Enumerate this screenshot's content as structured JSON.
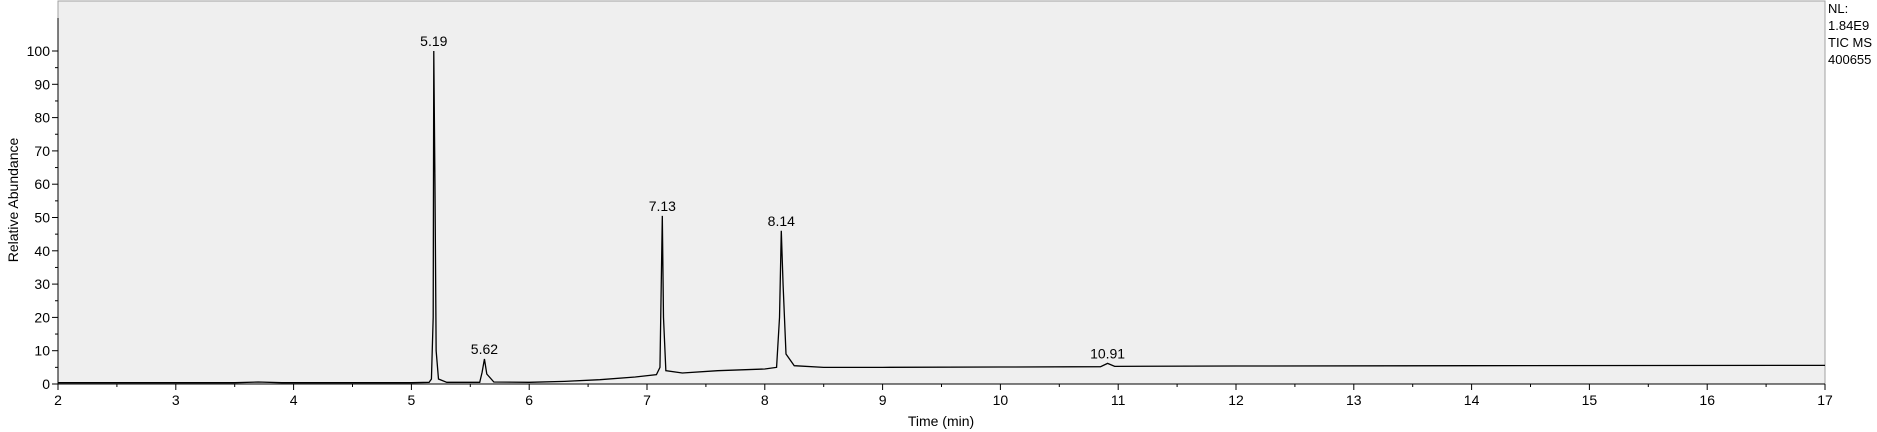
{
  "info": {
    "nl_label": "NL:",
    "nl_value": "1.84E9",
    "trace_type": "TIC  MS",
    "sample_id": "400655"
  },
  "chart_data": {
    "type": "line",
    "title": "",
    "xlabel": "Time (min)",
    "ylabel": "Relative Abundance",
    "xlim": [
      2,
      17
    ],
    "ylim": [
      0,
      100
    ],
    "x_ticks": [
      2,
      3,
      4,
      5,
      6,
      7,
      8,
      9,
      10,
      11,
      12,
      13,
      14,
      15,
      16,
      17
    ],
    "y_ticks": [
      0,
      10,
      20,
      30,
      40,
      50,
      60,
      70,
      80,
      90,
      100
    ],
    "grid": false,
    "background_color": "#efefef",
    "line_color": "#000000",
    "series": [
      {
        "points": [
          [
            2.0,
            0.4
          ],
          [
            3.5,
            0.4
          ],
          [
            3.7,
            0.6
          ],
          [
            3.9,
            0.4
          ],
          [
            5.0,
            0.4
          ],
          [
            5.15,
            0.5
          ],
          [
            5.17,
            1.5
          ],
          [
            5.185,
            20
          ],
          [
            5.19,
            100
          ],
          [
            5.2,
            60
          ],
          [
            5.21,
            10
          ],
          [
            5.23,
            1.5
          ],
          [
            5.3,
            0.5
          ],
          [
            5.58,
            0.5
          ],
          [
            5.6,
            3.5
          ],
          [
            5.62,
            7.5
          ],
          [
            5.64,
            3
          ],
          [
            5.7,
            0.6
          ],
          [
            6.0,
            0.5
          ],
          [
            6.3,
            0.8
          ],
          [
            6.6,
            1.3
          ],
          [
            6.9,
            2.1
          ],
          [
            7.08,
            2.8
          ],
          [
            7.11,
            5
          ],
          [
            7.13,
            50.5
          ],
          [
            7.14,
            20
          ],
          [
            7.16,
            4
          ],
          [
            7.3,
            3.3
          ],
          [
            7.6,
            4.0
          ],
          [
            8.0,
            4.5
          ],
          [
            8.1,
            5
          ],
          [
            8.125,
            20
          ],
          [
            8.14,
            46
          ],
          [
            8.155,
            30
          ],
          [
            8.18,
            9
          ],
          [
            8.25,
            5.5
          ],
          [
            8.5,
            5.0
          ],
          [
            9.0,
            5.0
          ],
          [
            10.0,
            5.1
          ],
          [
            10.85,
            5.2
          ],
          [
            10.91,
            6.2
          ],
          [
            10.97,
            5.3
          ],
          [
            12.0,
            5.4
          ],
          [
            14.0,
            5.5
          ],
          [
            17.0,
            5.6
          ]
        ]
      }
    ],
    "peak_labels": [
      {
        "text": "5.19",
        "x": 5.19,
        "y": 100
      },
      {
        "text": "5.62",
        "x": 5.62,
        "y": 7.5
      },
      {
        "text": "7.13",
        "x": 7.13,
        "y": 50.5
      },
      {
        "text": "8.14",
        "x": 8.14,
        "y": 46
      },
      {
        "text": "10.91",
        "x": 10.91,
        "y": 6.2
      }
    ]
  }
}
